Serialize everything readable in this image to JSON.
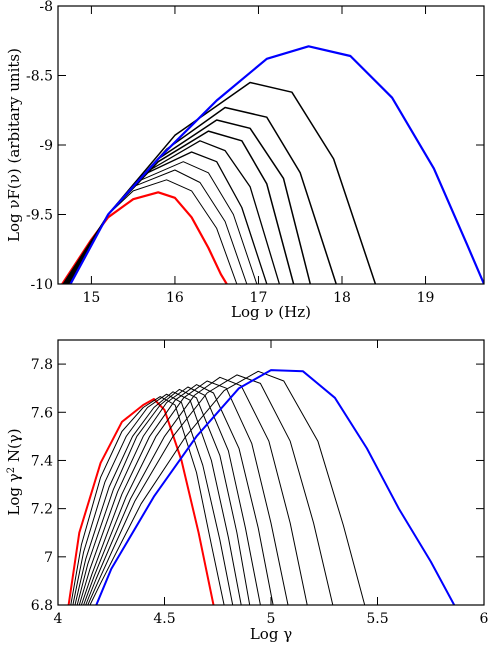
{
  "chart_data": [
    {
      "type": "line",
      "title": "",
      "xlabel": "Log  ν  (Hz)",
      "ylabel": "Log νF(ν)  (arbitary units)",
      "xlim": [
        14.6,
        19.7
      ],
      "ylim": [
        -10,
        -8
      ],
      "x_ticks": [
        15,
        16,
        17,
        18,
        19
      ],
      "y_ticks": [
        -10,
        -9.5,
        -9,
        -8.5,
        -8
      ],
      "x_tick_labels": [
        "15",
        "16",
        "17",
        "18",
        "19"
      ],
      "y_tick_labels": [
        "-10",
        "-9.5",
        "-9",
        "-8.5",
        "-8"
      ],
      "grid": false,
      "colors": {
        "first": "#ff0000",
        "middle": "#000000",
        "last": "#0000ff"
      },
      "series": [
        {
          "color": "#ff0000",
          "width": 2.2,
          "values": [
            [
              14.65,
              -10
            ],
            [
              15.0,
              -9.68
            ],
            [
              15.2,
              -9.52
            ],
            [
              15.5,
              -9.39
            ],
            [
              15.8,
              -9.34
            ],
            [
              16.0,
              -9.38
            ],
            [
              16.2,
              -9.52
            ],
            [
              16.4,
              -9.74
            ],
            [
              16.55,
              -9.93
            ],
            [
              16.62,
              -10
            ]
          ]
        },
        {
          "color": "#000000",
          "width": 1.0,
          "values": [
            [
              14.66,
              -10
            ],
            [
              15.2,
              -9.5
            ],
            [
              15.5,
              -9.33
            ],
            [
              15.9,
              -9.25
            ],
            [
              16.2,
              -9.33
            ],
            [
              16.5,
              -9.6
            ],
            [
              16.74,
              -10
            ]
          ]
        },
        {
          "color": "#000000",
          "width": 1.0,
          "values": [
            [
              14.67,
              -10
            ],
            [
              15.2,
              -9.5
            ],
            [
              15.5,
              -9.3
            ],
            [
              16.0,
              -9.18
            ],
            [
              16.3,
              -9.27
            ],
            [
              16.6,
              -9.55
            ],
            [
              16.86,
              -10
            ]
          ]
        },
        {
          "color": "#000000",
          "width": 1.0,
          "values": [
            [
              14.68,
              -10
            ],
            [
              15.2,
              -9.5
            ],
            [
              15.6,
              -9.25
            ],
            [
              16.1,
              -9.12
            ],
            [
              16.4,
              -9.2
            ],
            [
              16.7,
              -9.5
            ],
            [
              16.98,
              -10
            ]
          ]
        },
        {
          "color": "#000000",
          "width": 1.3,
          "values": [
            [
              14.69,
              -10
            ],
            [
              15.2,
              -9.5
            ],
            [
              15.6,
              -9.22
            ],
            [
              16.2,
              -9.05
            ],
            [
              16.5,
              -9.12
            ],
            [
              16.8,
              -9.45
            ],
            [
              17.1,
              -10
            ]
          ]
        },
        {
          "color": "#000000",
          "width": 1.3,
          "values": [
            [
              14.7,
              -10
            ],
            [
              15.2,
              -9.5
            ],
            [
              15.7,
              -9.18
            ],
            [
              16.3,
              -8.97
            ],
            [
              16.6,
              -9.04
            ],
            [
              16.9,
              -9.3
            ],
            [
              17.25,
              -10
            ]
          ]
        },
        {
          "color": "#000000",
          "width": 1.5,
          "values": [
            [
              14.71,
              -10
            ],
            [
              15.2,
              -9.5
            ],
            [
              15.8,
              -9.12
            ],
            [
              16.4,
              -8.9
            ],
            [
              16.8,
              -8.97
            ],
            [
              17.1,
              -9.28
            ],
            [
              17.42,
              -10
            ]
          ]
        },
        {
          "color": "#000000",
          "width": 1.5,
          "values": [
            [
              14.72,
              -10
            ],
            [
              15.2,
              -9.5
            ],
            [
              15.8,
              -9.1
            ],
            [
              16.5,
              -8.82
            ],
            [
              16.9,
              -8.88
            ],
            [
              17.3,
              -9.24
            ],
            [
              17.62,
              -10
            ]
          ]
        },
        {
          "color": "#000000",
          "width": 1.5,
          "values": [
            [
              14.73,
              -10
            ],
            [
              15.2,
              -9.5
            ],
            [
              15.9,
              -9.03
            ],
            [
              16.6,
              -8.73
            ],
            [
              17.1,
              -8.8
            ],
            [
              17.5,
              -9.2
            ],
            [
              17.93,
              -10
            ]
          ]
        },
        {
          "color": "#000000",
          "width": 1.5,
          "values": [
            [
              14.74,
              -10
            ],
            [
              15.2,
              -9.5
            ],
            [
              16.0,
              -8.93
            ],
            [
              16.9,
              -8.55
            ],
            [
              17.4,
              -8.62
            ],
            [
              17.9,
              -9.1
            ],
            [
              18.4,
              -10
            ]
          ]
        },
        {
          "color": "#0000ff",
          "width": 2.2,
          "values": [
            [
              14.75,
              -10
            ],
            [
              15.2,
              -9.5
            ],
            [
              15.8,
              -9.1
            ],
            [
              16.5,
              -8.68
            ],
            [
              17.1,
              -8.38
            ],
            [
              17.6,
              -8.29
            ],
            [
              18.1,
              -8.36
            ],
            [
              18.6,
              -8.66
            ],
            [
              19.1,
              -9.17
            ],
            [
              19.5,
              -9.72
            ],
            [
              19.7,
              -10
            ]
          ]
        }
      ]
    },
    {
      "type": "line",
      "title": "",
      "xlabel": "Log  γ",
      "ylabel": "Log γ² N(γ)",
      "xlim": [
        4,
        6
      ],
      "ylim": [
        6.8,
        7.9
      ],
      "x_ticks": [
        4,
        4.5,
        5,
        5.5,
        6
      ],
      "y_ticks": [
        6.8,
        7,
        7.2,
        7.4,
        7.6,
        7.8
      ],
      "x_tick_labels": [
        "4",
        "4.5",
        "5",
        "5.5",
        "6"
      ],
      "y_tick_labels": [
        "6.8",
        "7",
        "7.2",
        "7.4",
        "7.6",
        "7.8"
      ],
      "grid": false,
      "colors": {
        "first": "#ff0000",
        "middle": "#000000",
        "last": "#0000ff"
      },
      "series": [
        {
          "color": "#ff0000",
          "width": 2.0,
          "values": [
            [
              4.05,
              6.8
            ],
            [
              4.1,
              7.1
            ],
            [
              4.2,
              7.39
            ],
            [
              4.3,
              7.56
            ],
            [
              4.4,
              7.63
            ],
            [
              4.45,
              7.655
            ],
            [
              4.5,
              7.61
            ],
            [
              4.58,
              7.4
            ],
            [
              4.66,
              7.1
            ],
            [
              4.73,
              6.8
            ]
          ]
        },
        {
          "color": "#000000",
          "width": 1.0,
          "values": [
            [
              4.06,
              6.8
            ],
            [
              4.11,
              7.05
            ],
            [
              4.2,
              7.33
            ],
            [
              4.3,
              7.52
            ],
            [
              4.4,
              7.62
            ],
            [
              4.48,
              7.665
            ],
            [
              4.55,
              7.63
            ],
            [
              4.65,
              7.35
            ],
            [
              4.72,
              7.05
            ],
            [
              4.78,
              6.8
            ]
          ]
        },
        {
          "color": "#000000",
          "width": 1.0,
          "values": [
            [
              4.07,
              6.8
            ],
            [
              4.12,
              7.02
            ],
            [
              4.22,
              7.31
            ],
            [
              4.32,
              7.5
            ],
            [
              4.42,
              7.62
            ],
            [
              4.51,
              7.675
            ],
            [
              4.58,
              7.64
            ],
            [
              4.68,
              7.38
            ],
            [
              4.76,
              7.07
            ],
            [
              4.82,
              6.8
            ]
          ]
        },
        {
          "color": "#000000",
          "width": 1.0,
          "values": [
            [
              4.08,
              6.8
            ],
            [
              4.13,
              6.99
            ],
            [
              4.24,
              7.29
            ],
            [
              4.35,
              7.5
            ],
            [
              4.45,
              7.62
            ],
            [
              4.54,
              7.685
            ],
            [
              4.62,
              7.65
            ],
            [
              4.72,
              7.4
            ],
            [
              4.8,
              7.08
            ],
            [
              4.86,
              6.8
            ]
          ]
        },
        {
          "color": "#000000",
          "width": 1.0,
          "values": [
            [
              4.09,
              6.8
            ],
            [
              4.14,
              6.97
            ],
            [
              4.26,
              7.28
            ],
            [
              4.37,
              7.5
            ],
            [
              4.48,
              7.63
            ],
            [
              4.57,
              7.695
            ],
            [
              4.65,
              7.66
            ],
            [
              4.76,
              7.42
            ],
            [
              4.84,
              7.1
            ],
            [
              4.9,
              6.8
            ]
          ]
        },
        {
          "color": "#000000",
          "width": 1.0,
          "values": [
            [
              4.1,
              6.8
            ],
            [
              4.15,
              6.95
            ],
            [
              4.28,
              7.27
            ],
            [
              4.4,
              7.5
            ],
            [
              4.51,
              7.64
            ],
            [
              4.61,
              7.705
            ],
            [
              4.69,
              7.67
            ],
            [
              4.8,
              7.44
            ],
            [
              4.88,
              7.12
            ],
            [
              4.95,
              6.8
            ]
          ]
        },
        {
          "color": "#000000",
          "width": 1.0,
          "values": [
            [
              4.11,
              6.8
            ],
            [
              4.16,
              6.93
            ],
            [
              4.3,
              7.26
            ],
            [
              4.43,
              7.5
            ],
            [
              4.55,
              7.65
            ],
            [
              4.65,
              7.715
            ],
            [
              4.73,
              7.68
            ],
            [
              4.85,
              7.45
            ],
            [
              4.94,
              7.12
            ],
            [
              5.01,
              6.8
            ]
          ]
        },
        {
          "color": "#000000",
          "width": 1.0,
          "values": [
            [
              4.12,
              6.8
            ],
            [
              4.17,
              6.92
            ],
            [
              4.32,
              7.25
            ],
            [
              4.46,
              7.5
            ],
            [
              4.59,
              7.66
            ],
            [
              4.7,
              7.73
            ],
            [
              4.79,
              7.7
            ],
            [
              4.91,
              7.47
            ],
            [
              5.0,
              7.14
            ],
            [
              5.08,
              6.8
            ]
          ]
        },
        {
          "color": "#000000",
          "width": 1.0,
          "values": [
            [
              4.13,
              6.8
            ],
            [
              4.18,
              6.91
            ],
            [
              4.34,
              7.24
            ],
            [
              4.5,
              7.5
            ],
            [
              4.64,
              7.67
            ],
            [
              4.76,
              7.745
            ],
            [
              4.86,
              7.71
            ],
            [
              4.99,
              7.48
            ],
            [
              5.09,
              7.14
            ],
            [
              5.17,
              6.8
            ]
          ]
        },
        {
          "color": "#000000",
          "width": 1.0,
          "values": [
            [
              4.14,
              6.8
            ],
            [
              4.19,
              6.9
            ],
            [
              4.36,
              7.23
            ],
            [
              4.54,
              7.5
            ],
            [
              4.7,
              7.68
            ],
            [
              4.84,
              7.755
            ],
            [
              4.95,
              7.72
            ],
            [
              5.09,
              7.48
            ],
            [
              5.2,
              7.14
            ],
            [
              5.29,
              6.8
            ]
          ]
        },
        {
          "color": "#000000",
          "width": 1.0,
          "values": [
            [
              4.15,
              6.8
            ],
            [
              4.2,
              6.89
            ],
            [
              4.39,
              7.22
            ],
            [
              4.6,
              7.5
            ],
            [
              4.78,
              7.69
            ],
            [
              4.94,
              7.77
            ],
            [
              5.06,
              7.73
            ],
            [
              5.22,
              7.48
            ],
            [
              5.34,
              7.13
            ],
            [
              5.44,
              6.8
            ]
          ]
        },
        {
          "color": "#0000ff",
          "width": 2.0,
          "values": [
            [
              4.18,
              6.8
            ],
            [
              4.25,
              6.95
            ],
            [
              4.45,
              7.25
            ],
            [
              4.65,
              7.5
            ],
            [
              4.85,
              7.7
            ],
            [
              5.0,
              7.775
            ],
            [
              5.15,
              7.77
            ],
            [
              5.3,
              7.66
            ],
            [
              5.45,
              7.45
            ],
            [
              5.6,
              7.2
            ],
            [
              5.75,
              6.98
            ],
            [
              5.86,
              6.8
            ]
          ]
        }
      ]
    }
  ]
}
